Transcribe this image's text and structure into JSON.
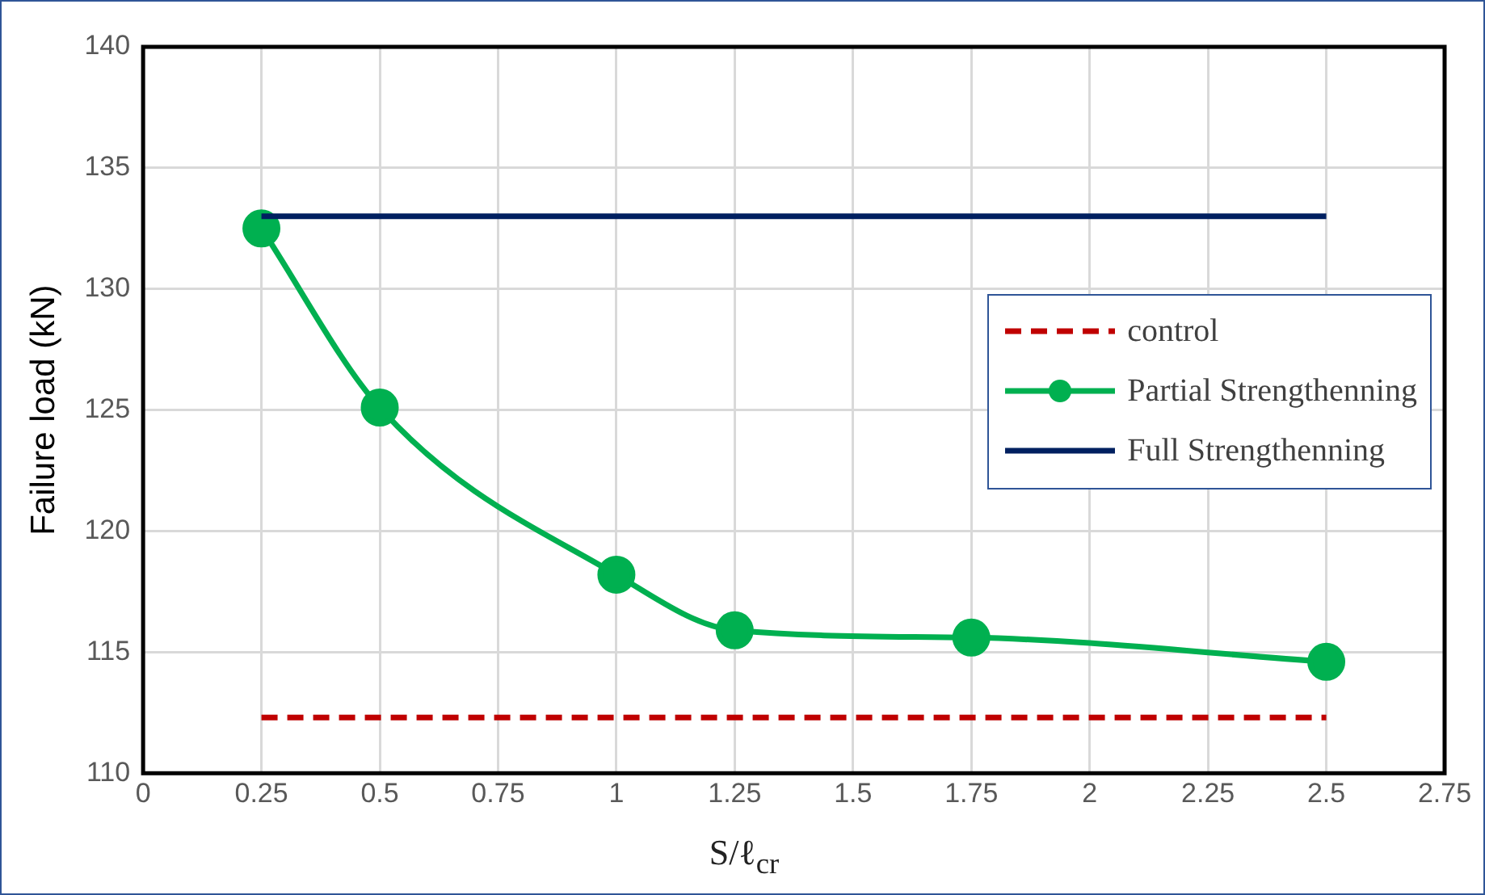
{
  "chart_data": {
    "type": "line",
    "xlabel": "S/ℓ$_{cr}$",
    "ylabel": "Failure load (kN)",
    "xlim": [
      0,
      2.75
    ],
    "xticks": [
      0,
      0.25,
      0.5,
      0.75,
      1,
      1.25,
      1.5,
      1.75,
      2,
      2.25,
      2.5,
      2.75
    ],
    "ylim": [
      110,
      140
    ],
    "yticks": [
      110,
      115,
      120,
      125,
      130,
      135,
      140
    ],
    "grid": true,
    "legend": "right",
    "series": [
      {
        "name": "control",
        "color": "#c00000",
        "line_style": "dashed",
        "marker": "none",
        "x": [
          0.25,
          2.5
        ],
        "values": [
          112.3,
          112.3
        ]
      },
      {
        "name": "Partial Strengthenning",
        "color": "#00b050",
        "line_style": "solid",
        "marker": "circle",
        "x": [
          0.25,
          0.5,
          1,
          1.25,
          1.75,
          2.5
        ],
        "values": [
          132.5,
          125.1,
          118.2,
          115.9,
          115.6,
          114.6
        ]
      },
      {
        "name": "Full Strengthenning",
        "color": "#002060",
        "line_style": "solid",
        "marker": "none",
        "x": [
          0.25,
          2.5
        ],
        "values": [
          133,
          133
        ]
      }
    ]
  }
}
